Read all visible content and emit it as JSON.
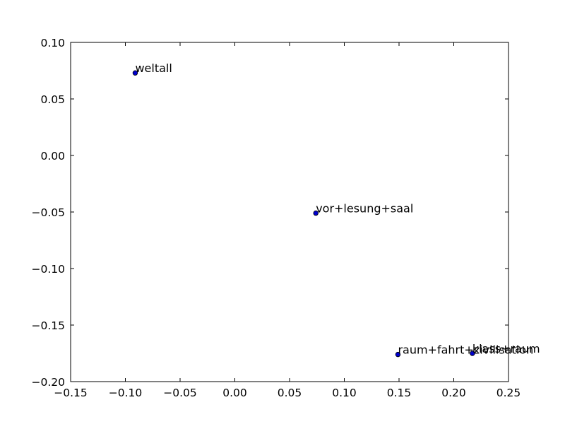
{
  "chart_data": {
    "type": "scatter",
    "title": "",
    "xlabel": "",
    "ylabel": "",
    "xlim": [
      -0.15,
      0.25
    ],
    "ylim": [
      -0.2,
      0.1
    ],
    "x_ticks": [
      -0.15,
      -0.1,
      -0.05,
      0.0,
      0.05,
      0.1,
      0.15,
      0.2,
      0.25
    ],
    "y_ticks": [
      -0.2,
      -0.15,
      -0.1,
      -0.05,
      0.0,
      0.05,
      0.1
    ],
    "x_tick_labels": [
      "−0.15",
      "−0.10",
      "−0.05",
      "0.00",
      "0.05",
      "0.10",
      "0.15",
      "0.20",
      "0.25"
    ],
    "y_tick_labels": [
      "−0.20",
      "−0.15",
      "−0.10",
      "−0.05",
      "0.00",
      "0.05",
      "0.10"
    ],
    "grid": false,
    "legend": "none",
    "marker_color": "#0000cc",
    "points": [
      {
        "label": "weltall",
        "x": -0.091,
        "y": 0.073
      },
      {
        "label": "vor+lesung+saal",
        "x": 0.074,
        "y": -0.051
      },
      {
        "label": "raum+fahrt+zivilisation",
        "x": 0.149,
        "y": -0.176
      },
      {
        "label": "klass+raum",
        "x": 0.217,
        "y": -0.175
      }
    ]
  }
}
